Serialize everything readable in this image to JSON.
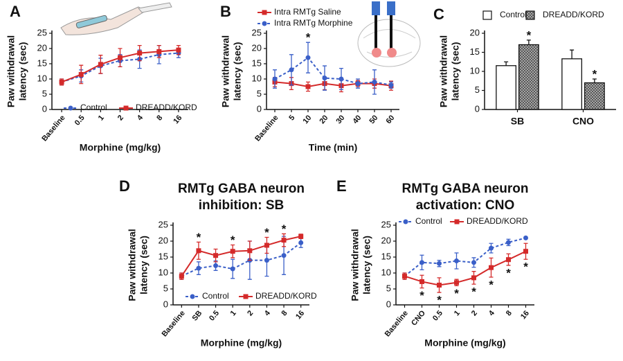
{
  "chart_data": [
    {
      "type": "line",
      "panel_label": "A",
      "ylabel": [
        "Paw withdrawal",
        "latency (sec)"
      ],
      "xlabel": "Morphine (mg/kg)",
      "categories": [
        "Baseline",
        "0.5",
        "1",
        "2",
        "4",
        "8",
        "16"
      ],
      "ylim": [
        0,
        25
      ],
      "yticks": [
        0,
        5,
        10,
        15,
        20,
        25
      ],
      "series": [
        {
          "name": "Control",
          "color": "#3a5fc8",
          "dashed": true,
          "marker": "circle",
          "values": [
            9,
            11,
            14.3,
            16,
            16.5,
            18,
            18.5
          ],
          "errors": [
            1,
            2,
            2.5,
            2,
            3,
            3,
            1.5
          ]
        },
        {
          "name": "DREADD/KORD",
          "color": "#d42a2a",
          "dashed": false,
          "marker": "square",
          "values": [
            9,
            11.5,
            14.8,
            17,
            18.5,
            19,
            19.5
          ],
          "errors": [
            1,
            3,
            3,
            3,
            2.5,
            2,
            1.5
          ]
        }
      ],
      "legend": "lower right"
    },
    {
      "type": "line",
      "panel_label": "B",
      "ylabel": [
        "Paw withdrawal",
        "latency (sec)"
      ],
      "xlabel": "Time (min)",
      "categories": [
        "Baseline",
        "5",
        "10",
        "20",
        "30",
        "40",
        "50",
        "60"
      ],
      "ylim": [
        0,
        25
      ],
      "yticks": [
        0,
        5,
        10,
        15,
        20,
        25
      ],
      "series": [
        {
          "name": "Intra RMTg Saline",
          "color": "#d42a2a",
          "dashed": false,
          "marker": "square",
          "values": [
            9,
            8.5,
            7.5,
            8.5,
            7.8,
            8.5,
            8.5,
            7.8
          ],
          "errors": [
            1.5,
            2,
            1.5,
            2,
            2,
            1,
            1.5,
            1.5
          ]
        },
        {
          "name": "Intra RMTg Morphine",
          "color": "#3a5fc8",
          "dashed": true,
          "marker": "circle",
          "values": [
            10,
            13,
            17,
            10.3,
            10,
            8.5,
            9,
            8
          ],
          "errors": [
            3,
            5,
            5,
            4,
            3.5,
            1.5,
            4,
            1
          ]
        }
      ],
      "legend": "upper left",
      "annotations": [
        {
          "text": "*",
          "category": "10",
          "series": "Intra RMTg Morphine",
          "placement": "above"
        }
      ]
    },
    {
      "type": "bar",
      "panel_label": "C",
      "ylabel": [
        "Paw withdrawal",
        "latency (sec)"
      ],
      "categories": [
        "SB",
        "CNO"
      ],
      "ylim": [
        0,
        20
      ],
      "yticks": [
        0,
        5,
        10,
        15,
        20
      ],
      "series": [
        {
          "name": "Control",
          "color": "#ffffff",
          "pattern": "none",
          "values": [
            11.5,
            13.3
          ],
          "errors": [
            1,
            2.3
          ]
        },
        {
          "name": "DREADD/KORD",
          "color": "#888888",
          "pattern": "crosshatch",
          "values": [
            17,
            7
          ],
          "errors": [
            1.2,
            1
          ]
        }
      ],
      "legend": "top",
      "annotations": [
        {
          "text": "*",
          "category": "SB",
          "series": "DREADD/KORD",
          "placement": "above"
        },
        {
          "text": "*",
          "category": "CNO",
          "series": "DREADD/KORD",
          "placement": "above"
        }
      ]
    },
    {
      "type": "line",
      "panel_label": "D",
      "title": [
        "RMTg GABA neuron",
        "inhibition: SB"
      ],
      "ylabel": [
        "Paw withdrawal",
        "latency (sec)"
      ],
      "xlabel": "Morphine (mg/kg)",
      "categories": [
        "Baseline",
        "SB",
        "0.5",
        "1",
        "2",
        "4",
        "8",
        "16"
      ],
      "ylim": [
        0,
        25
      ],
      "yticks": [
        0,
        5,
        10,
        15,
        20,
        25
      ],
      "series": [
        {
          "name": "Control",
          "color": "#3a5fc8",
          "dashed": true,
          "marker": "circle",
          "values": [
            9,
            11.5,
            12.3,
            11.3,
            14,
            14,
            15.5,
            19.5
          ],
          "errors": [
            1,
            2,
            1.5,
            3,
            6,
            5,
            6,
            1.5
          ]
        },
        {
          "name": "DREADD/KORD",
          "color": "#d42a2a",
          "dashed": false,
          "marker": "square",
          "values": [
            9,
            17,
            15.5,
            16.8,
            17,
            18.7,
            20.3,
            21.5
          ],
          "errors": [
            1,
            2.7,
            2,
            2,
            3,
            2.5,
            2,
            0.7
          ]
        }
      ],
      "legend": "lower right",
      "annotations": [
        {
          "text": "*",
          "category": "SB",
          "series": "DREADD/KORD",
          "placement": "above"
        },
        {
          "text": "*",
          "category": "1",
          "series": "DREADD/KORD",
          "placement": "above"
        },
        {
          "text": "*",
          "category": "4",
          "series": "DREADD/KORD",
          "placement": "above"
        },
        {
          "text": "*",
          "category": "8",
          "series": "DREADD/KORD",
          "placement": "above"
        }
      ]
    },
    {
      "type": "line",
      "panel_label": "E",
      "title": [
        "RMTg GABA neuron",
        "activation: CNO"
      ],
      "ylabel": [
        "Paw withdrawal",
        "latency (sec)"
      ],
      "xlabel": "Morphine (mg/kg)",
      "categories": [
        "Baseline",
        "CNO",
        "0.5",
        "1",
        "2",
        "4",
        "8",
        "16"
      ],
      "ylim": [
        0,
        25
      ],
      "yticks": [
        0,
        5,
        10,
        15,
        20,
        25
      ],
      "series": [
        {
          "name": "Control",
          "color": "#3a5fc8",
          "dashed": true,
          "marker": "circle",
          "values": [
            9,
            13.3,
            13,
            13.8,
            13.3,
            17.8,
            19.6,
            21
          ],
          "errors": [
            1,
            2.3,
            1,
            2.5,
            1.5,
            1.5,
            1,
            0.3
          ]
        },
        {
          "name": "DREADD/KORD",
          "color": "#d42a2a",
          "dashed": false,
          "marker": "square",
          "values": [
            9,
            7.3,
            6.2,
            7,
            8.5,
            11.7,
            14.2,
            16.8
          ],
          "errors": [
            1,
            2,
            2.3,
            1,
            2,
            3,
            1.8,
            2.5
          ]
        }
      ],
      "legend": "upper left",
      "annotations": [
        {
          "text": "*",
          "category": "CNO",
          "series": "DREADD/KORD",
          "placement": "below"
        },
        {
          "text": "*",
          "category": "0.5",
          "series": "DREADD/KORD",
          "placement": "below"
        },
        {
          "text": "*",
          "category": "1",
          "series": "DREADD/KORD",
          "placement": "below"
        },
        {
          "text": "*",
          "category": "2",
          "series": "DREADD/KORD",
          "placement": "below"
        },
        {
          "text": "*",
          "category": "4",
          "series": "DREADD/KORD",
          "placement": "below"
        },
        {
          "text": "*",
          "category": "8",
          "series": "DREADD/KORD",
          "placement": "below"
        },
        {
          "text": "*",
          "category": "16",
          "series": "DREADD/KORD",
          "placement": "below"
        }
      ]
    }
  ]
}
